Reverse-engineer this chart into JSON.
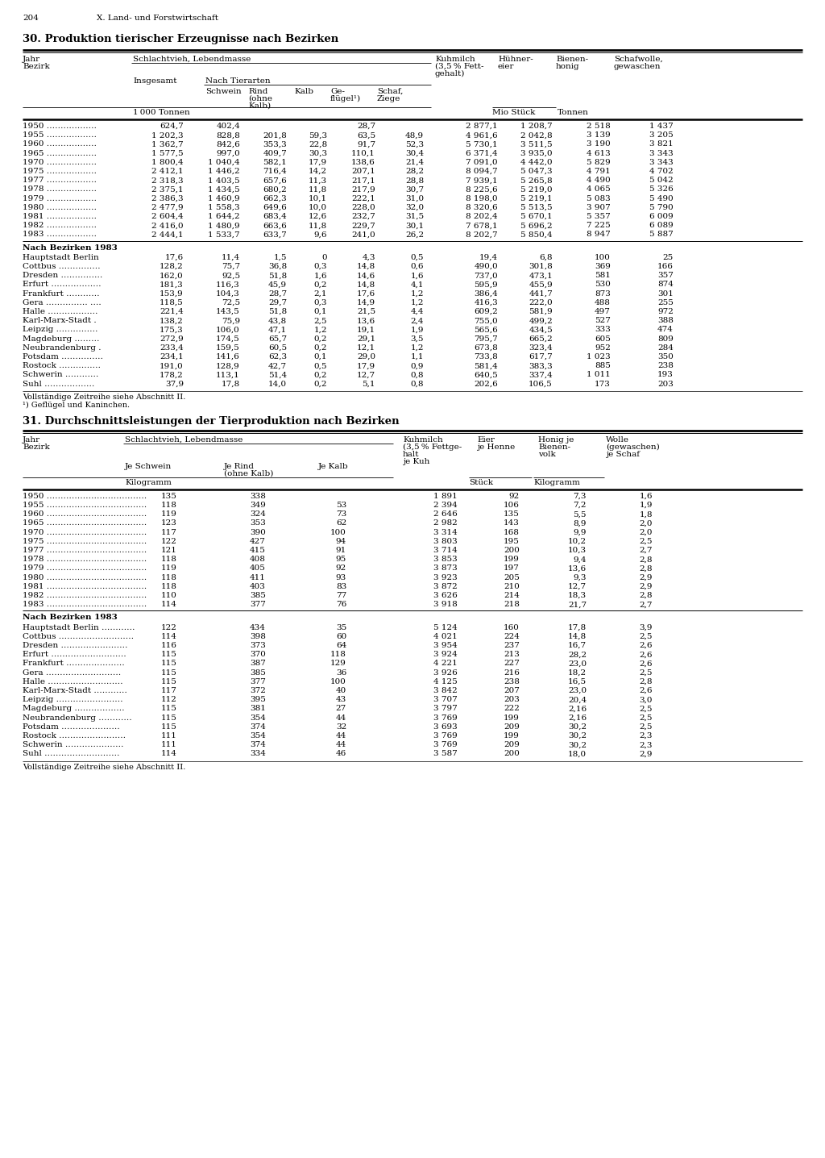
{
  "page_number": "204",
  "page_header": "X. Land- und Forstwirtschaft",
  "table1_title": "30. Produktion tierischer Erzeugnisse nach Bezirken",
  "table2_title": "31. Durchschnittsleistungen der Tierproduktion nach Bezirken",
  "table1_year_rows": [
    [
      "1950 ………………",
      "624,7",
      "402,4",
      "",
      "",
      "28,7",
      "",
      "2 877,1",
      "1 208,7",
      "2 518",
      "1 437"
    ],
    [
      "1955 ………………",
      "1 202,3",
      "828,8",
      "201,8",
      "59,3",
      "63,5",
      "48,9",
      "4 961,6",
      "2 042,8",
      "3 139",
      "3 205"
    ],
    [
      "1960 ………………",
      "1 362,7",
      "842,6",
      "353,3",
      "22,8",
      "91,7",
      "52,3",
      "5 730,1",
      "3 511,5",
      "3 190",
      "3 821"
    ],
    [
      "1965 ………………",
      "1 577,5",
      "997,0",
      "409,7",
      "30,3",
      "110,1",
      "30,4",
      "6 371,4",
      "3 935,0",
      "4 613",
      "3 343"
    ],
    [
      "1970 ………………",
      "1 800,4",
      "1 040,4",
      "582,1",
      "17,9",
      "138,6",
      "21,4",
      "7 091,0",
      "4 442,0",
      "5 829",
      "3 343"
    ],
    [
      "1975 ………………",
      "2 412,1",
      "1 446,2",
      "716,4",
      "14,2",
      "207,1",
      "28,2",
      "8 094,7",
      "5 047,3",
      "4 791",
      "4 702"
    ],
    [
      "1977 ………………",
      "2 318,3",
      "1 403,5",
      "657,6",
      "11,3",
      "217,1",
      "28,8",
      "7 939,1",
      "5 265,8",
      "4 490",
      "5 042"
    ],
    [
      "1978 ………………",
      "2 375,1",
      "1 434,5",
      "680,2",
      "11,8",
      "217,9",
      "30,7",
      "8 225,6",
      "5 219,0",
      "4 065",
      "5 326"
    ],
    [
      "1979 ………………",
      "2 386,3",
      "1 460,9",
      "662,3",
      "10,1",
      "222,1",
      "31,0",
      "8 198,0",
      "5 219,1",
      "5 083",
      "5 490"
    ],
    [
      "1980 ………………",
      "2 477,9",
      "1 558,3",
      "649,6",
      "10,0",
      "228,0",
      "32,0",
      "8 320,6",
      "5 513,5",
      "3 907",
      "5 790"
    ],
    [
      "1981 ………………",
      "2 604,4",
      "1 644,2",
      "683,4",
      "12,6",
      "232,7",
      "31,5",
      "8 202,4",
      "5 670,1",
      "5 357",
      "6 009"
    ],
    [
      "1982 ………………",
      "2 416,0",
      "1 480,9",
      "663,6",
      "11,8",
      "229,7",
      "30,1",
      "7 678,1",
      "5 696,2",
      "7 225",
      "6 089"
    ],
    [
      "1983 ………………",
      "2 444,1",
      "1 533,7",
      "633,7",
      "9,6",
      "241,0",
      "26,2",
      "8 202,7",
      "5 850,4",
      "8 947",
      "5 887"
    ]
  ],
  "table1_bezirk_rows": [
    [
      "Hauptstadt Berlin",
      "17,6",
      "11,4",
      "1,5",
      "0",
      "4,3",
      "0,5",
      "19,4",
      "6,8",
      "100",
      "25"
    ],
    [
      "Cottbus ……………",
      "128,2",
      "75,7",
      "36,8",
      "0,3",
      "14,8",
      "0,6",
      "490,0",
      "301,8",
      "369",
      "166"
    ],
    [
      "Dresden ……………",
      "162,0",
      "92,5",
      "51,8",
      "1,6",
      "14,6",
      "1,6",
      "737,0",
      "473,1",
      "581",
      "357"
    ],
    [
      "Erfurt ………………",
      "181,3",
      "116,3",
      "45,9",
      "0,2",
      "14,8",
      "4,1",
      "595,9",
      "455,9",
      "530",
      "874"
    ],
    [
      "Frankfurt …………",
      "153,9",
      "104,3",
      "28,7",
      "2,1",
      "17,6",
      "1,2",
      "386,4",
      "441,7",
      "873",
      "301"
    ],
    [
      "Gera …………… ….",
      "118,5",
      "72,5",
      "29,7",
      "0,3",
      "14,9",
      "1,2",
      "416,3",
      "222,0",
      "488",
      "255"
    ],
    [
      "Halle ………………",
      "221,4",
      "143,5",
      "51,8",
      "0,1",
      "21,5",
      "4,4",
      "609,2",
      "581,9",
      "497",
      "972"
    ],
    [
      "Karl-Marx-Stadt .",
      "138,2",
      "75,9",
      "43,8",
      "2,5",
      "13,6",
      "2,4",
      "755,0",
      "499,2",
      "527",
      "388"
    ],
    [
      "Leipzig ……………",
      "175,3",
      "106,0",
      "47,1",
      "1,2",
      "19,1",
      "1,9",
      "565,6",
      "434,5",
      "333",
      "474"
    ],
    [
      "Magdeburg ………",
      "272,9",
      "174,5",
      "65,7",
      "0,2",
      "29,1",
      "3,5",
      "795,7",
      "665,2",
      "605",
      "809"
    ],
    [
      "Neubrandenburg .",
      "233,4",
      "159,5",
      "60,5",
      "0,2",
      "12,1",
      "1,2",
      "673,8",
      "323,4",
      "952",
      "284"
    ],
    [
      "Potsdam ……………",
      "234,1",
      "141,6",
      "62,3",
      "0,1",
      "29,0",
      "1,1",
      "733,8",
      "617,7",
      "1 023",
      "350"
    ],
    [
      "Rostock ……………",
      "191,0",
      "128,9",
      "42,7",
      "0,5",
      "17,9",
      "0,9",
      "581,4",
      "383,3",
      "885",
      "238"
    ],
    [
      "Schwerin …………",
      "178,2",
      "113,1",
      "51,4",
      "0,2",
      "12,7",
      "0,8",
      "640,5",
      "337,4",
      "1 011",
      "193"
    ],
    [
      "Suhl ………………",
      "37,9",
      "17,8",
      "14,0",
      "0,2",
      "5,1",
      "0,8",
      "202,6",
      "106,5",
      "173",
      "203"
    ]
  ],
  "table1_footnote1": "Vollständige Zeitreihe siehe Abschnitt II.",
  "table1_footnote2": "¹) Geflügel und Kaninchen.",
  "table2_year_rows": [
    [
      "1950 ………………………………",
      "135",
      "338",
      "",
      "1 891",
      "92",
      "7,3",
      "1,6"
    ],
    [
      "1955 ………………………………",
      "118",
      "349",
      "53",
      "2 394",
      "106",
      "7,2",
      "1,9"
    ],
    [
      "1960 ………………………………",
      "119",
      "324",
      "73",
      "2 646",
      "135",
      "5,5",
      "1,8"
    ],
    [
      "1965 ………………………………",
      "123",
      "353",
      "62",
      "2 982",
      "143",
      "8,9",
      "2,0"
    ],
    [
      "1970 ………………………………",
      "117",
      "390",
      "100",
      "3 314",
      "168",
      "9,9",
      "2,0"
    ],
    [
      "1975 ………………………………",
      "122",
      "427",
      "94",
      "3 803",
      "195",
      "10,2",
      "2,5"
    ],
    [
      "1977 ………………………………",
      "121",
      "415",
      "91",
      "3 714",
      "200",
      "10,3",
      "2,7"
    ],
    [
      "1978 ………………………………",
      "118",
      "408",
      "95",
      "3 853",
      "199",
      "9,4",
      "2,8"
    ],
    [
      "1979 ………………………………",
      "119",
      "405",
      "92",
      "3 873",
      "197",
      "13,6",
      "2,8"
    ],
    [
      "1980 ………………………………",
      "118",
      "411",
      "93",
      "3 923",
      "205",
      "9,3",
      "2,9"
    ],
    [
      "1981 ………………………………",
      "118",
      "403",
      "83",
      "3 872",
      "210",
      "12,7",
      "2,9"
    ],
    [
      "1982 ………………………………",
      "110",
      "385",
      "77",
      "3 626",
      "214",
      "18,3",
      "2,8"
    ],
    [
      "1983 ………………………………",
      "114",
      "377",
      "76",
      "3 918",
      "218",
      "21,7",
      "2,7"
    ]
  ],
  "table2_bezirk_rows": [
    [
      "Hauptstadt Berlin …………",
      "122",
      "434",
      "35",
      "5 124",
      "160",
      "17,8",
      "3,9"
    ],
    [
      "Cottbus ………………………",
      "114",
      "398",
      "60",
      "4 021",
      "224",
      "14,8",
      "2,5"
    ],
    [
      "Dresden ……………………",
      "116",
      "373",
      "64",
      "3 954",
      "237",
      "16,7",
      "2,6"
    ],
    [
      "Erfurt ………………………",
      "115",
      "370",
      "118",
      "3 924",
      "213",
      "28,2",
      "2,6"
    ],
    [
      "Frankfurt …………………",
      "115",
      "387",
      "129",
      "4 221",
      "227",
      "23,0",
      "2,6"
    ],
    [
      "Gera ………………………",
      "115",
      "385",
      "36",
      "3 926",
      "216",
      "18,2",
      "2,5"
    ],
    [
      "Halle ………………………",
      "115",
      "377",
      "100",
      "4 125",
      "238",
      "16,5",
      "2,8"
    ],
    [
      "Karl-Marx-Stadt …………",
      "117",
      "372",
      "40",
      "3 842",
      "207",
      "23,0",
      "2,6"
    ],
    [
      "Leipzig ……………………",
      "112",
      "395",
      "43",
      "3 707",
      "203",
      "20,4",
      "3,0"
    ],
    [
      "Magdeburg ………………",
      "115",
      "381",
      "27",
      "3 797",
      "222",
      "2,16",
      "2,5"
    ],
    [
      "Neubrandenburg …………",
      "115",
      "354",
      "44",
      "3 769",
      "199",
      "2,16",
      "2,5"
    ],
    [
      "Potsdam …………………",
      "115",
      "374",
      "32",
      "3 693",
      "209",
      "30,2",
      "2,5"
    ],
    [
      "Rostock ……………………",
      "111",
      "354",
      "44",
      "3 769",
      "199",
      "30,2",
      "2,3"
    ],
    [
      "Schwerin …………………",
      "111",
      "374",
      "44",
      "3 769",
      "209",
      "30,2",
      "2,3"
    ],
    [
      "Suhl ………………………",
      "114",
      "334",
      "46",
      "3 587",
      "200",
      "18,0",
      "2,9"
    ]
  ],
  "table2_footnote": "Vollständige Zeitreihe siehe Abschnitt II."
}
